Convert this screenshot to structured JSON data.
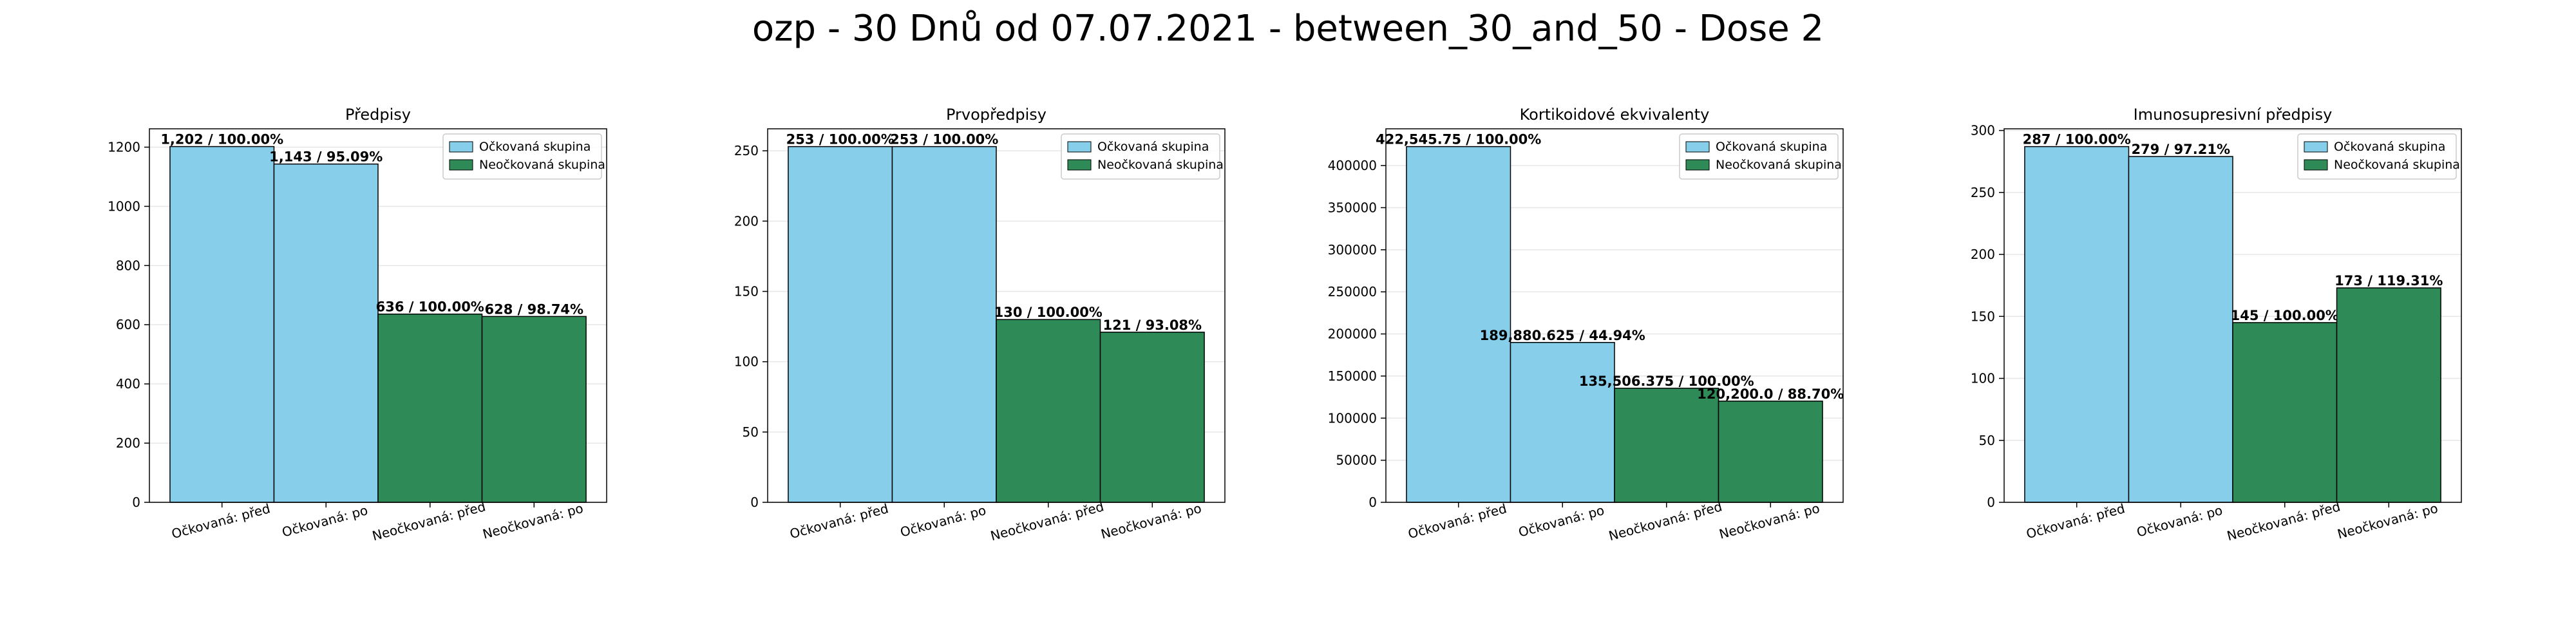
{
  "figure": {
    "title": "ozp - 30 Dnů od 07.07.2021 - between_30_and_50 - Dose 2"
  },
  "legend": {
    "vaccinated": "Očkovaná skupina",
    "unvaccinated": "Neočkovaná skupina"
  },
  "colors": {
    "vaccinated": "#87ceeb",
    "unvaccinated": "#2e8b57",
    "grid": "#e6e6e6",
    "edge": "#000000"
  },
  "chart_data": [
    {
      "type": "bar",
      "title": "Předpisy",
      "categories": [
        "Očkovaná: před",
        "Očkovaná: po",
        "Neočkovaná: před",
        "Neočkovaná: po"
      ],
      "values": [
        1202,
        1143,
        636,
        628
      ],
      "groups": [
        "vaccinated",
        "vaccinated",
        "unvaccinated",
        "unvaccinated"
      ],
      "bar_labels": [
        "1,202 / 100.00%",
        "1,143 / 95.09%",
        "636 / 100.00%",
        "628 / 98.74%"
      ],
      "ylim": [
        0,
        1262
      ],
      "yticks": [
        0,
        200,
        400,
        600,
        800,
        1000,
        1200
      ],
      "ytick_labels": [
        "0",
        "200",
        "400",
        "600",
        "800",
        "1000",
        "1200"
      ],
      "grid": true,
      "legend_position": "top-right"
    },
    {
      "type": "bar",
      "title": "Prvopředpisy",
      "categories": [
        "Očkovaná: před",
        "Očkovaná: po",
        "Neočkovaná: před",
        "Neočkovaná: po"
      ],
      "values": [
        253,
        253,
        130,
        121
      ],
      "groups": [
        "vaccinated",
        "vaccinated",
        "unvaccinated",
        "unvaccinated"
      ],
      "bar_labels": [
        "253 / 100.00%",
        "253 / 100.00%",
        "130 / 100.00%",
        "121 / 93.08%"
      ],
      "ylim": [
        0,
        265.65
      ],
      "yticks": [
        0,
        50,
        100,
        150,
        200,
        250
      ],
      "ytick_labels": [
        "0",
        "50",
        "100",
        "150",
        "200",
        "250"
      ],
      "grid": true,
      "legend_position": "top-right"
    },
    {
      "type": "bar",
      "title": "Kortikoidové ekvivalenty",
      "categories": [
        "Očkovaná: před",
        "Očkovaná: po",
        "Neočkovaná: před",
        "Neočkovaná: po"
      ],
      "values": [
        422545.75,
        189880.625,
        135506.375,
        120200.0
      ],
      "groups": [
        "vaccinated",
        "vaccinated",
        "unvaccinated",
        "unvaccinated"
      ],
      "bar_labels": [
        "422,545.75 / 100.00%",
        "189,880.625 / 44.94%",
        "135,506.375 / 100.00%",
        "120,200.0 / 88.70%"
      ],
      "ylim": [
        0,
        443673
      ],
      "yticks": [
        0,
        50000,
        100000,
        150000,
        200000,
        250000,
        300000,
        350000,
        400000
      ],
      "ytick_labels": [
        "0",
        "50000",
        "100000",
        "150000",
        "200000",
        "250000",
        "300000",
        "350000",
        "400000"
      ],
      "grid": true,
      "legend_position": "top-right"
    },
    {
      "type": "bar",
      "title": "Imunosupresivní předpisy",
      "categories": [
        "Očkovaná: před",
        "Očkovaná: po",
        "Neočkovaná: před",
        "Neočkovaná: po"
      ],
      "values": [
        287,
        279,
        145,
        173
      ],
      "groups": [
        "vaccinated",
        "vaccinated",
        "unvaccinated",
        "unvaccinated"
      ],
      "bar_labels": [
        "287 / 100.00%",
        "279 / 97.21%",
        "145 / 100.00%",
        "173 / 119.31%"
      ],
      "ylim": [
        0,
        301.35
      ],
      "yticks": [
        0,
        50,
        100,
        150,
        200,
        250,
        300
      ],
      "ytick_labels": [
        "0",
        "50",
        "100",
        "150",
        "200",
        "250",
        "300"
      ],
      "grid": true,
      "legend_position": "top-right"
    }
  ]
}
